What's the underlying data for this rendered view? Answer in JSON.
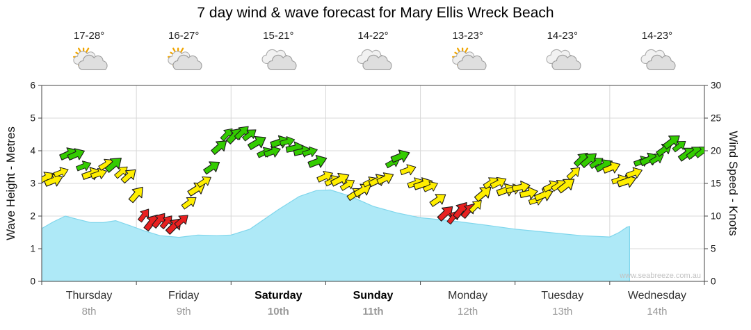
{
  "title": "7 day wind & wave forecast for Mary Ellis Wreck Beach",
  "watermark": "www.seabreeze.com.au",
  "axes": {
    "left_title": "Wave Height - Metres",
    "right_title": "Wind Speed - Knots",
    "left_ticks": [
      0,
      1,
      2,
      3,
      4,
      5,
      6
    ],
    "right_ticks": [
      0,
      5,
      10,
      15,
      20,
      25,
      30
    ],
    "left_range": [
      0,
      6
    ],
    "right_range": [
      0,
      30
    ]
  },
  "days": [
    {
      "name": "Thursday",
      "date": "8th",
      "temp": "17-28°",
      "icon": "partly-sunny",
      "weekend": false
    },
    {
      "name": "Friday",
      "date": "9th",
      "temp": "16-27°",
      "icon": "partly-sunny",
      "weekend": false
    },
    {
      "name": "Saturday",
      "date": "10th",
      "temp": "15-21°",
      "icon": "cloudy",
      "weekend": true
    },
    {
      "name": "Sunday",
      "date": "11th",
      "temp": "14-22°",
      "icon": "cloudy",
      "weekend": true
    },
    {
      "name": "Monday",
      "date": "12th",
      "temp": "13-23°",
      "icon": "partly-sunny",
      "weekend": false
    },
    {
      "name": "Tuesday",
      "date": "13th",
      "temp": "14-23°",
      "icon": "cloudy",
      "weekend": false
    },
    {
      "name": "Wednesday",
      "date": "14th",
      "temp": "14-23°",
      "icon": "cloudy",
      "weekend": false
    }
  ],
  "chart_data": {
    "type": "area",
    "title": "7 day wind & wave forecast for Mary Ellis Wreck Beach",
    "x_unit": "days (Thursday 8th to Wednesday 14th)",
    "x_range": [
      0,
      7
    ],
    "wave_height_m": {
      "name": "Wave Height",
      "unit": "m",
      "axis": "left",
      "range": [
        0,
        6
      ],
      "points": [
        [
          0,
          1.62
        ],
        [
          0.12,
          1.82
        ],
        [
          0.25,
          2.0
        ],
        [
          0.38,
          1.9
        ],
        [
          0.52,
          1.8
        ],
        [
          0.65,
          1.8
        ],
        [
          0.78,
          1.86
        ],
        [
          0.92,
          1.72
        ],
        [
          1.08,
          1.55
        ],
        [
          1.25,
          1.4
        ],
        [
          1.45,
          1.35
        ],
        [
          1.65,
          1.42
        ],
        [
          1.85,
          1.4
        ],
        [
          2.0,
          1.42
        ],
        [
          2.2,
          1.6
        ],
        [
          2.5,
          2.2
        ],
        [
          2.72,
          2.6
        ],
        [
          2.9,
          2.78
        ],
        [
          3.05,
          2.8
        ],
        [
          3.25,
          2.62
        ],
        [
          3.5,
          2.3
        ],
        [
          3.75,
          2.1
        ],
        [
          4.0,
          1.95
        ],
        [
          4.35,
          1.85
        ],
        [
          4.7,
          1.72
        ],
        [
          5.0,
          1.6
        ],
        [
          5.35,
          1.5
        ],
        [
          5.7,
          1.4
        ],
        [
          6.0,
          1.36
        ],
        [
          6.1,
          1.5
        ],
        [
          6.18,
          1.66
        ],
        [
          6.21,
          1.68
        ],
        [
          6.21,
          0
        ]
      ]
    },
    "wind_knots": {
      "name": "Wind Speed & Direction",
      "unit": "knots",
      "axis": "right",
      "range": [
        0,
        30
      ],
      "points_x_speed_dir": [
        [
          0,
          15,
          -30
        ],
        [
          0.15,
          16,
          -25
        ],
        [
          0.3,
          19.5,
          -35
        ],
        [
          0.45,
          18,
          -30
        ],
        [
          0.6,
          16,
          -20
        ],
        [
          0.75,
          18.5,
          -35
        ],
        [
          0.9,
          16.5,
          -30
        ],
        [
          1.05,
          11,
          -45
        ],
        [
          1.2,
          9,
          -50
        ],
        [
          1.35,
          8.5,
          -55
        ],
        [
          1.5,
          10,
          -50
        ],
        [
          1.65,
          14,
          -40
        ],
        [
          1.8,
          18,
          -35
        ],
        [
          1.95,
          22,
          -40
        ],
        [
          2.1,
          23.5,
          -35
        ],
        [
          2.25,
          21,
          -25
        ],
        [
          2.4,
          20,
          -20
        ],
        [
          2.55,
          21,
          -25
        ],
        [
          2.7,
          21,
          -20
        ],
        [
          2.85,
          19,
          -25
        ],
        [
          3.0,
          16.5,
          -25
        ],
        [
          3.15,
          15,
          -20
        ],
        [
          3.3,
          14,
          -25
        ],
        [
          3.45,
          14.5,
          -20
        ],
        [
          3.6,
          15.5,
          -25
        ],
        [
          3.7,
          18.5,
          -35
        ],
        [
          3.8,
          18.5,
          -30
        ],
        [
          3.9,
          16,
          -30
        ],
        [
          4.05,
          15,
          -25
        ],
        [
          4.2,
          12,
          -35
        ],
        [
          4.35,
          10,
          -45
        ],
        [
          4.5,
          10.5,
          -40
        ],
        [
          4.65,
          13.5,
          -35
        ],
        [
          4.8,
          15,
          -30
        ],
        [
          4.95,
          14.5,
          -25
        ],
        [
          5.1,
          13.5,
          -20
        ],
        [
          5.25,
          13,
          -25
        ],
        [
          5.4,
          14,
          -25
        ],
        [
          5.55,
          15.5,
          -30
        ],
        [
          5.7,
          18,
          -35
        ],
        [
          5.85,
          19,
          -30
        ],
        [
          6.0,
          17,
          -25
        ],
        [
          6.1,
          15.5,
          -25
        ],
        [
          6.25,
          16.5,
          -30
        ],
        [
          6.4,
          18.5,
          -30
        ],
        [
          6.55,
          20,
          -35
        ],
        [
          6.7,
          21,
          -30
        ],
        [
          6.85,
          20,
          -25
        ],
        [
          7.0,
          19,
          -30
        ]
      ],
      "color_rule": {
        "red_below": 11.5,
        "yellow_below": 17.5,
        "green_otherwise": true
      }
    },
    "colors": {
      "wave_fill": "#AEE9F7",
      "wave_edge": "#7FD6EC",
      "wind_light": "#E82020",
      "wind_moderate": "#FFEE00",
      "wind_fresh": "#33CC00"
    }
  }
}
